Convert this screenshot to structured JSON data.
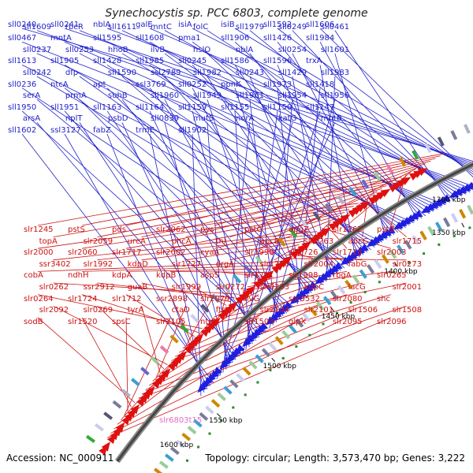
{
  "title": "Synechocystis sp. PCC 6803, complete genome",
  "footer": {
    "accession": "Accession: NC_000911",
    "topology": "Topology: circular; Length: 3,573,470 bp; Genes: 3,222"
  },
  "colors": {
    "forward_gene": "#1f1fe0",
    "reverse_gene": "#e01010",
    "label_blue": "#2222cc",
    "label_red": "#cc1111",
    "label_pink": "#e070c0",
    "backbone": "#555555"
  },
  "kbp_markers": [
    "1300 kbp",
    "1350 kbp",
    "1400 kbp",
    "1450 kbp",
    "1500 kbp",
    "1550 kbp",
    "1600 kbp"
  ],
  "forward_labels": [
    "sll0240",
    "sll0241",
    "nblA",
    "galE",
    "isiA",
    "isiB",
    "sll1592",
    "sll1606",
    "sll1609",
    "rbcR",
    "sll1611",
    "mntC",
    "folC",
    "sll1979",
    "sll0249",
    "sll0461",
    "sll0467",
    "mntA",
    "sll1595",
    "sll1608",
    "pma1",
    "sll1906",
    "sll1426",
    "sll1984",
    "sll0237",
    "sll0253",
    "hhoB",
    "ilvB",
    "hslO",
    "nblA",
    "sll0254",
    "sll1601",
    "sll1613",
    "sll1905",
    "sll1428",
    "sll1985",
    "sll0245",
    "sll1586",
    "sll1596",
    "trxA",
    "sll0242",
    "dfp",
    "sll1590",
    "ssl2789",
    "sll1982",
    "sll0243",
    "sll1429",
    "sll1983",
    "sll0236",
    "ntcA",
    "apt",
    "ssl3769",
    "sll0252",
    "ppnK",
    "sll1973",
    "sll1418",
    "serA",
    "prmA",
    "suhB",
    "sll1960",
    "sll1949",
    "sll1961",
    "sll1954",
    "sll1956",
    "sll1950",
    "sll1951",
    "sll1163",
    "sll1164",
    "sll1159",
    "sll1155",
    "sll1150",
    "sll1147",
    "arsA",
    "nplT",
    "psbD",
    "sll0839",
    "mutS",
    "norA",
    "katG",
    "mntB",
    "sll1602",
    "ssl3127",
    "fabZ",
    "trmE",
    "sll1902"
  ],
  "reverse_labels": [
    "slr1245",
    "pstS",
    "pds",
    "slr2062",
    "pys",
    "pstC",
    "apqZ",
    "slr1262",
    "pstB",
    "topA",
    "slr2059",
    "ureA",
    "phcA",
    "thl",
    "apcB",
    "slr1263",
    "apcC",
    "slr1715",
    "slr2000",
    "slr2060",
    "slr1717",
    "slr2002",
    "cyaA",
    "slr1990",
    "slr1726",
    "slr1718",
    "slr2003",
    "ssr3402",
    "slr1992",
    "kdpD",
    "slr1727",
    "drgA",
    "slr1716",
    "slr2004",
    "fabG",
    "slr0273",
    "cobA",
    "ndhH",
    "kdpA",
    "kdpB",
    "aspS",
    "slr1721",
    "slr1998",
    "rbgA",
    "slr0265",
    "slr0262",
    "ssr2912",
    "guaB",
    "slr1999",
    "slr0272",
    "slr0263",
    "kdpC",
    "lacG",
    "slr2001",
    "slr0264",
    "slr1724",
    "slr1712",
    "ssr2898",
    "slr2079",
    "ilvG",
    "ssr3532",
    "slr2080",
    "shc",
    "slr2092",
    "slr0269",
    "tyrA",
    "ctaD",
    "ftsY",
    "slr2104",
    "slr2101",
    "slr1506",
    "slr1508",
    "sodB",
    "slr1520",
    "spsC",
    "slr2105",
    "ntpJ",
    "slr1503",
    "glpX",
    "slr2095",
    "slr2096"
  ],
  "faint_label": "slr6803t15"
}
